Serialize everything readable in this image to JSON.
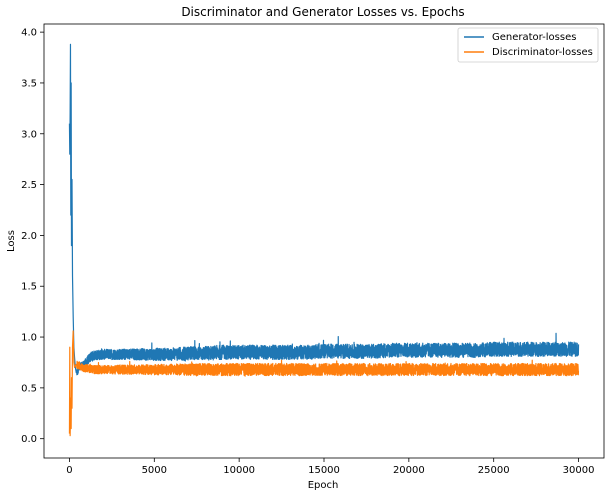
{
  "chart_data": {
    "type": "line",
    "title": "Discriminator and Generator Losses vs. Epochs",
    "xlabel": "Epoch",
    "ylabel": "Loss",
    "xlim": [
      -1500,
      31500
    ],
    "ylim": [
      -0.19,
      4.08
    ],
    "x_ticks": [
      0,
      5000,
      10000,
      15000,
      20000,
      25000,
      30000
    ],
    "x_tick_labels": [
      "0",
      "5000",
      "10000",
      "15000",
      "20000",
      "25000",
      "30000"
    ],
    "y_ticks": [
      0.0,
      0.5,
      1.0,
      1.5,
      2.0,
      2.5,
      3.0,
      3.5,
      4.0
    ],
    "y_tick_labels": [
      "0.0",
      "0.5",
      "1.0",
      "1.5",
      "2.0",
      "2.5",
      "3.0",
      "3.5",
      "4.0"
    ],
    "grid": false,
    "legend_position": "top-right",
    "series": [
      {
        "name": "Generator-losses",
        "color": "#1f77b4",
        "x": [
          0,
          20,
          40,
          60,
          80,
          100,
          120,
          150,
          180,
          220,
          260,
          300,
          350,
          400,
          500,
          600,
          800,
          1000,
          1200,
          1500,
          2000,
          2500,
          3000,
          4000,
          5000,
          6000,
          7000,
          8000,
          9000,
          10000,
          11000,
          12000,
          13000,
          14000,
          15000,
          16000,
          17000,
          18000,
          19000,
          20000,
          21000,
          22000,
          23000,
          24000,
          25000,
          26000,
          27000,
          28000,
          29000,
          30000
        ],
        "y": [
          3.1,
          2.8,
          3.2,
          3.88,
          2.2,
          3.5,
          1.9,
          2.55,
          1.6,
          1.2,
          0.9,
          0.8,
          0.7,
          0.65,
          0.67,
          0.7,
          0.72,
          0.75,
          0.8,
          0.82,
          0.83,
          0.83,
          0.83,
          0.83,
          0.83,
          0.83,
          0.84,
          0.84,
          0.85,
          0.85,
          0.85,
          0.85,
          0.85,
          0.85,
          0.86,
          0.86,
          0.86,
          0.86,
          0.87,
          0.87,
          0.87,
          0.87,
          0.87,
          0.87,
          0.88,
          0.88,
          0.88,
          0.88,
          0.88,
          0.88
        ],
        "noise": 0.07
      },
      {
        "name": "Discriminator-losses",
        "color": "#ff7f0e",
        "x": [
          0,
          20,
          40,
          60,
          80,
          100,
          120,
          150,
          180,
          220,
          260,
          300,
          350,
          400,
          500,
          600,
          800,
          1000,
          1200,
          1500,
          2000,
          2500,
          3000,
          4000,
          5000,
          6000,
          7000,
          8000,
          9000,
          10000,
          11000,
          12000,
          13000,
          14000,
          15000,
          16000,
          17000,
          18000,
          19000,
          20000,
          21000,
          22000,
          23000,
          24000,
          25000,
          26000,
          27000,
          28000,
          29000,
          30000
        ],
        "y": [
          0.05,
          0.9,
          0.03,
          0.2,
          0.4,
          0.1,
          0.6,
          0.3,
          0.9,
          1.06,
          0.75,
          0.7,
          0.72,
          0.73,
          0.72,
          0.72,
          0.7,
          0.69,
          0.69,
          0.68,
          0.68,
          0.68,
          0.68,
          0.68,
          0.68,
          0.68,
          0.68,
          0.68,
          0.68,
          0.68,
          0.68,
          0.68,
          0.68,
          0.68,
          0.68,
          0.68,
          0.68,
          0.68,
          0.68,
          0.68,
          0.68,
          0.68,
          0.68,
          0.68,
          0.68,
          0.68,
          0.68,
          0.68,
          0.68,
          0.68
        ],
        "noise": 0.06
      }
    ]
  }
}
